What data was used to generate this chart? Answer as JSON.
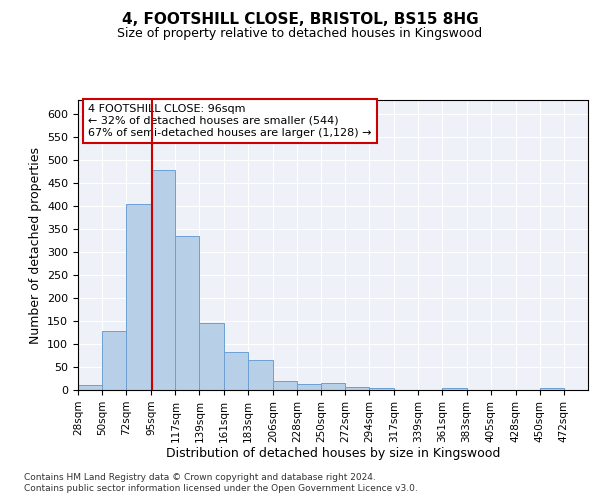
{
  "title": "4, FOOTSHILL CLOSE, BRISTOL, BS15 8HG",
  "subtitle": "Size of property relative to detached houses in Kingswood",
  "xlabel": "Distribution of detached houses by size in Kingswood",
  "ylabel": "Number of detached properties",
  "footnote1": "Contains HM Land Registry data © Crown copyright and database right 2024.",
  "footnote2": "Contains public sector information licensed under the Open Government Licence v3.0.",
  "bin_edges": [
    28,
    50,
    72,
    95,
    117,
    139,
    161,
    183,
    206,
    228,
    250,
    272,
    294,
    317,
    339,
    361,
    383,
    405,
    428,
    450,
    472
  ],
  "bar_heights": [
    10,
    128,
    405,
    477,
    335,
    145,
    83,
    65,
    20,
    12,
    15,
    7,
    5,
    0,
    0,
    5,
    0,
    0,
    0,
    5
  ],
  "bar_color": "#b8cfe8",
  "bar_edge_color": "#6b9fd4",
  "red_line_x": 96,
  "ylim": [
    0,
    630
  ],
  "yticks": [
    0,
    50,
    100,
    150,
    200,
    250,
    300,
    350,
    400,
    450,
    500,
    550,
    600
  ],
  "annotation_text": "4 FOOTSHILL CLOSE: 96sqm\n← 32% of detached houses are smaller (544)\n67% of semi-detached houses are larger (1,128) →",
  "annotation_box_color": "#ffffff",
  "annotation_box_edge": "#cc0000",
  "bg_color": "#eef2f8"
}
